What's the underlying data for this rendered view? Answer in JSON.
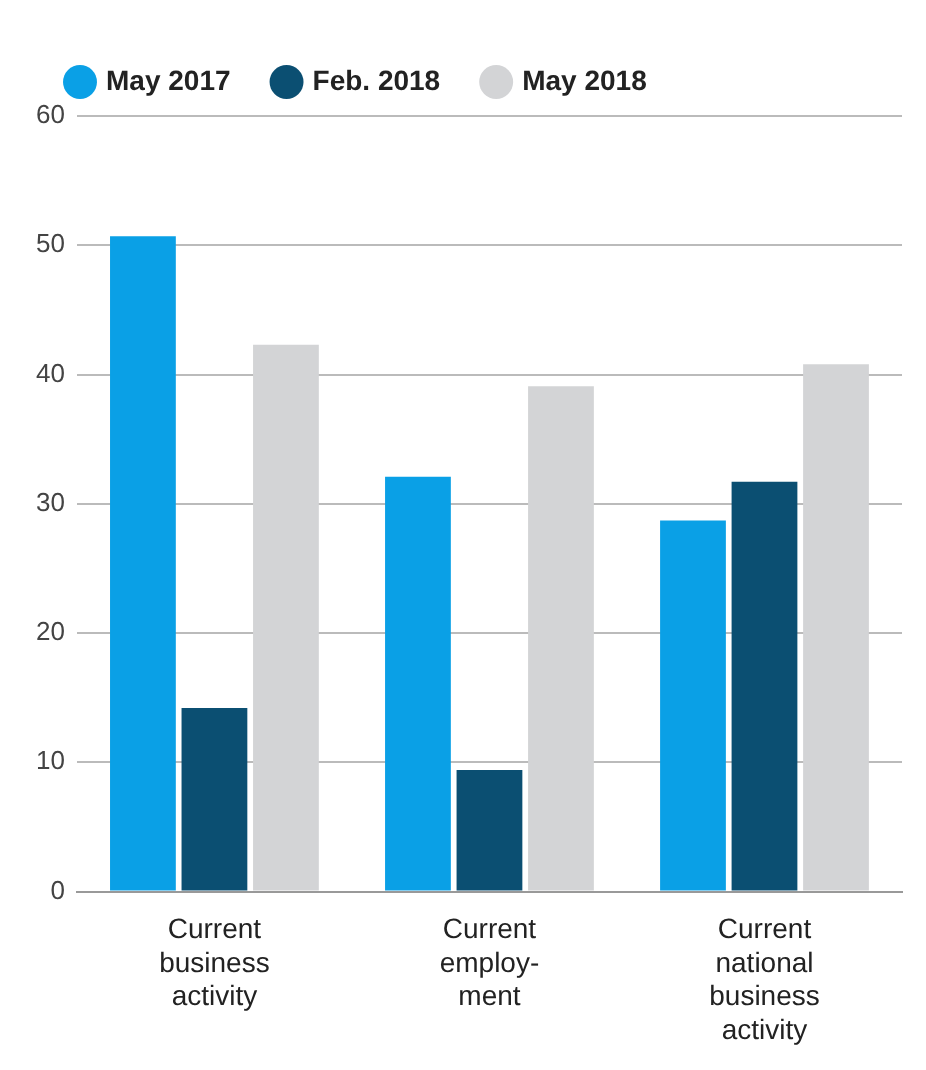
{
  "chart_data": {
    "type": "bar",
    "categories": [
      "Current business activity",
      "Current employ-ment",
      "Current national business activity"
    ],
    "series": [
      {
        "name": "May 2017",
        "color": "#0aa0e6",
        "values": [
          50.7,
          32.1,
          28.7
        ]
      },
      {
        "name": "Feb. 2018",
        "color": "#0b4f72",
        "values": [
          14.2,
          9.4,
          31.7
        ]
      },
      {
        "name": "May 2018",
        "color": "#d3d4d6",
        "values": [
          42.3,
          39.1,
          40.8
        ]
      }
    ],
    "ylim": [
      0,
      60
    ],
    "yticks": [
      0,
      10,
      20,
      30,
      40,
      50,
      60
    ],
    "grid": "y",
    "legend": "top"
  }
}
